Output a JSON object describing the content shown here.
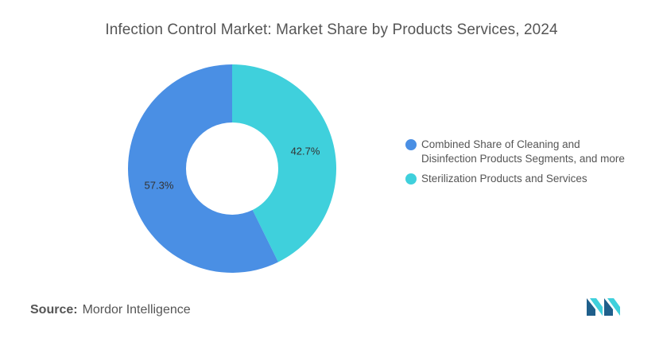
{
  "chart_data": {
    "type": "pie",
    "variant": "donut",
    "title": "Infection Control Market: Market Share by Products Services, 2024",
    "slices": [
      {
        "label": "Sterilization Products and Services",
        "value": 42.7,
        "display": "42.7%",
        "color": "#3fd0dc"
      },
      {
        "label": "Combined Share of Cleaning and Disinfection Products Segments, and more",
        "value": 57.3,
        "display": "57.3%",
        "color": "#4a8fe4"
      }
    ],
    "legend": {
      "placement": "right",
      "items": [
        {
          "label": "Combined Share of Cleaning and Disinfection Products Segments, and more",
          "color": "#4a8fe4"
        },
        {
          "label": "Sterilization Products and Services",
          "color": "#3fd0dc"
        }
      ]
    }
  },
  "source": {
    "label": "Source:",
    "value": "Mordor Intelligence"
  },
  "logo": {
    "icon": "mordor-intelligence-logo-icon",
    "colors": [
      "#1f5f8b",
      "#3fd0dc"
    ]
  }
}
